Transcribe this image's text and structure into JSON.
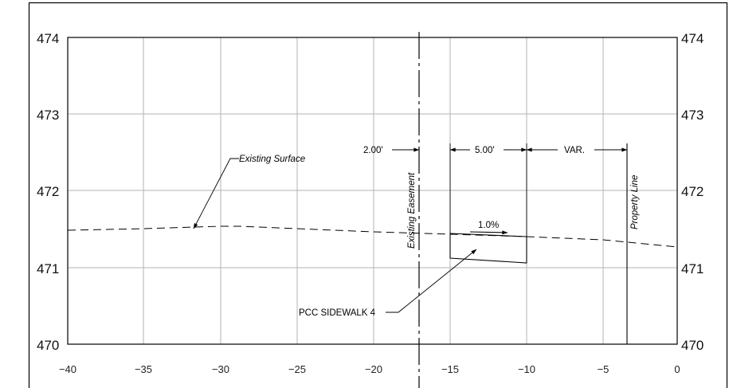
{
  "labels": {
    "existing_surface": "Existing Surface",
    "existing_easement": "Existing Easement",
    "property_line": "Property Line",
    "dim_left": "2.00'",
    "dim_mid": "5.00'",
    "dim_right": "VAR.",
    "slope": "1.0%",
    "sidewalk": "PCC SIDEWALK 4"
  },
  "axes": {
    "x_ticks": [
      "−40",
      "−35",
      "−30",
      "−25",
      "−20",
      "−15",
      "−10",
      "−5",
      "0"
    ],
    "y_ticks_left": [
      "474",
      "473",
      "472",
      "471",
      "470"
    ],
    "y_ticks_right": [
      "474",
      "473",
      "472",
      "471",
      "470"
    ]
  },
  "colors": {
    "ink": "#000000",
    "grid": "#b3b3b3",
    "background": "#ffffff"
  }
}
